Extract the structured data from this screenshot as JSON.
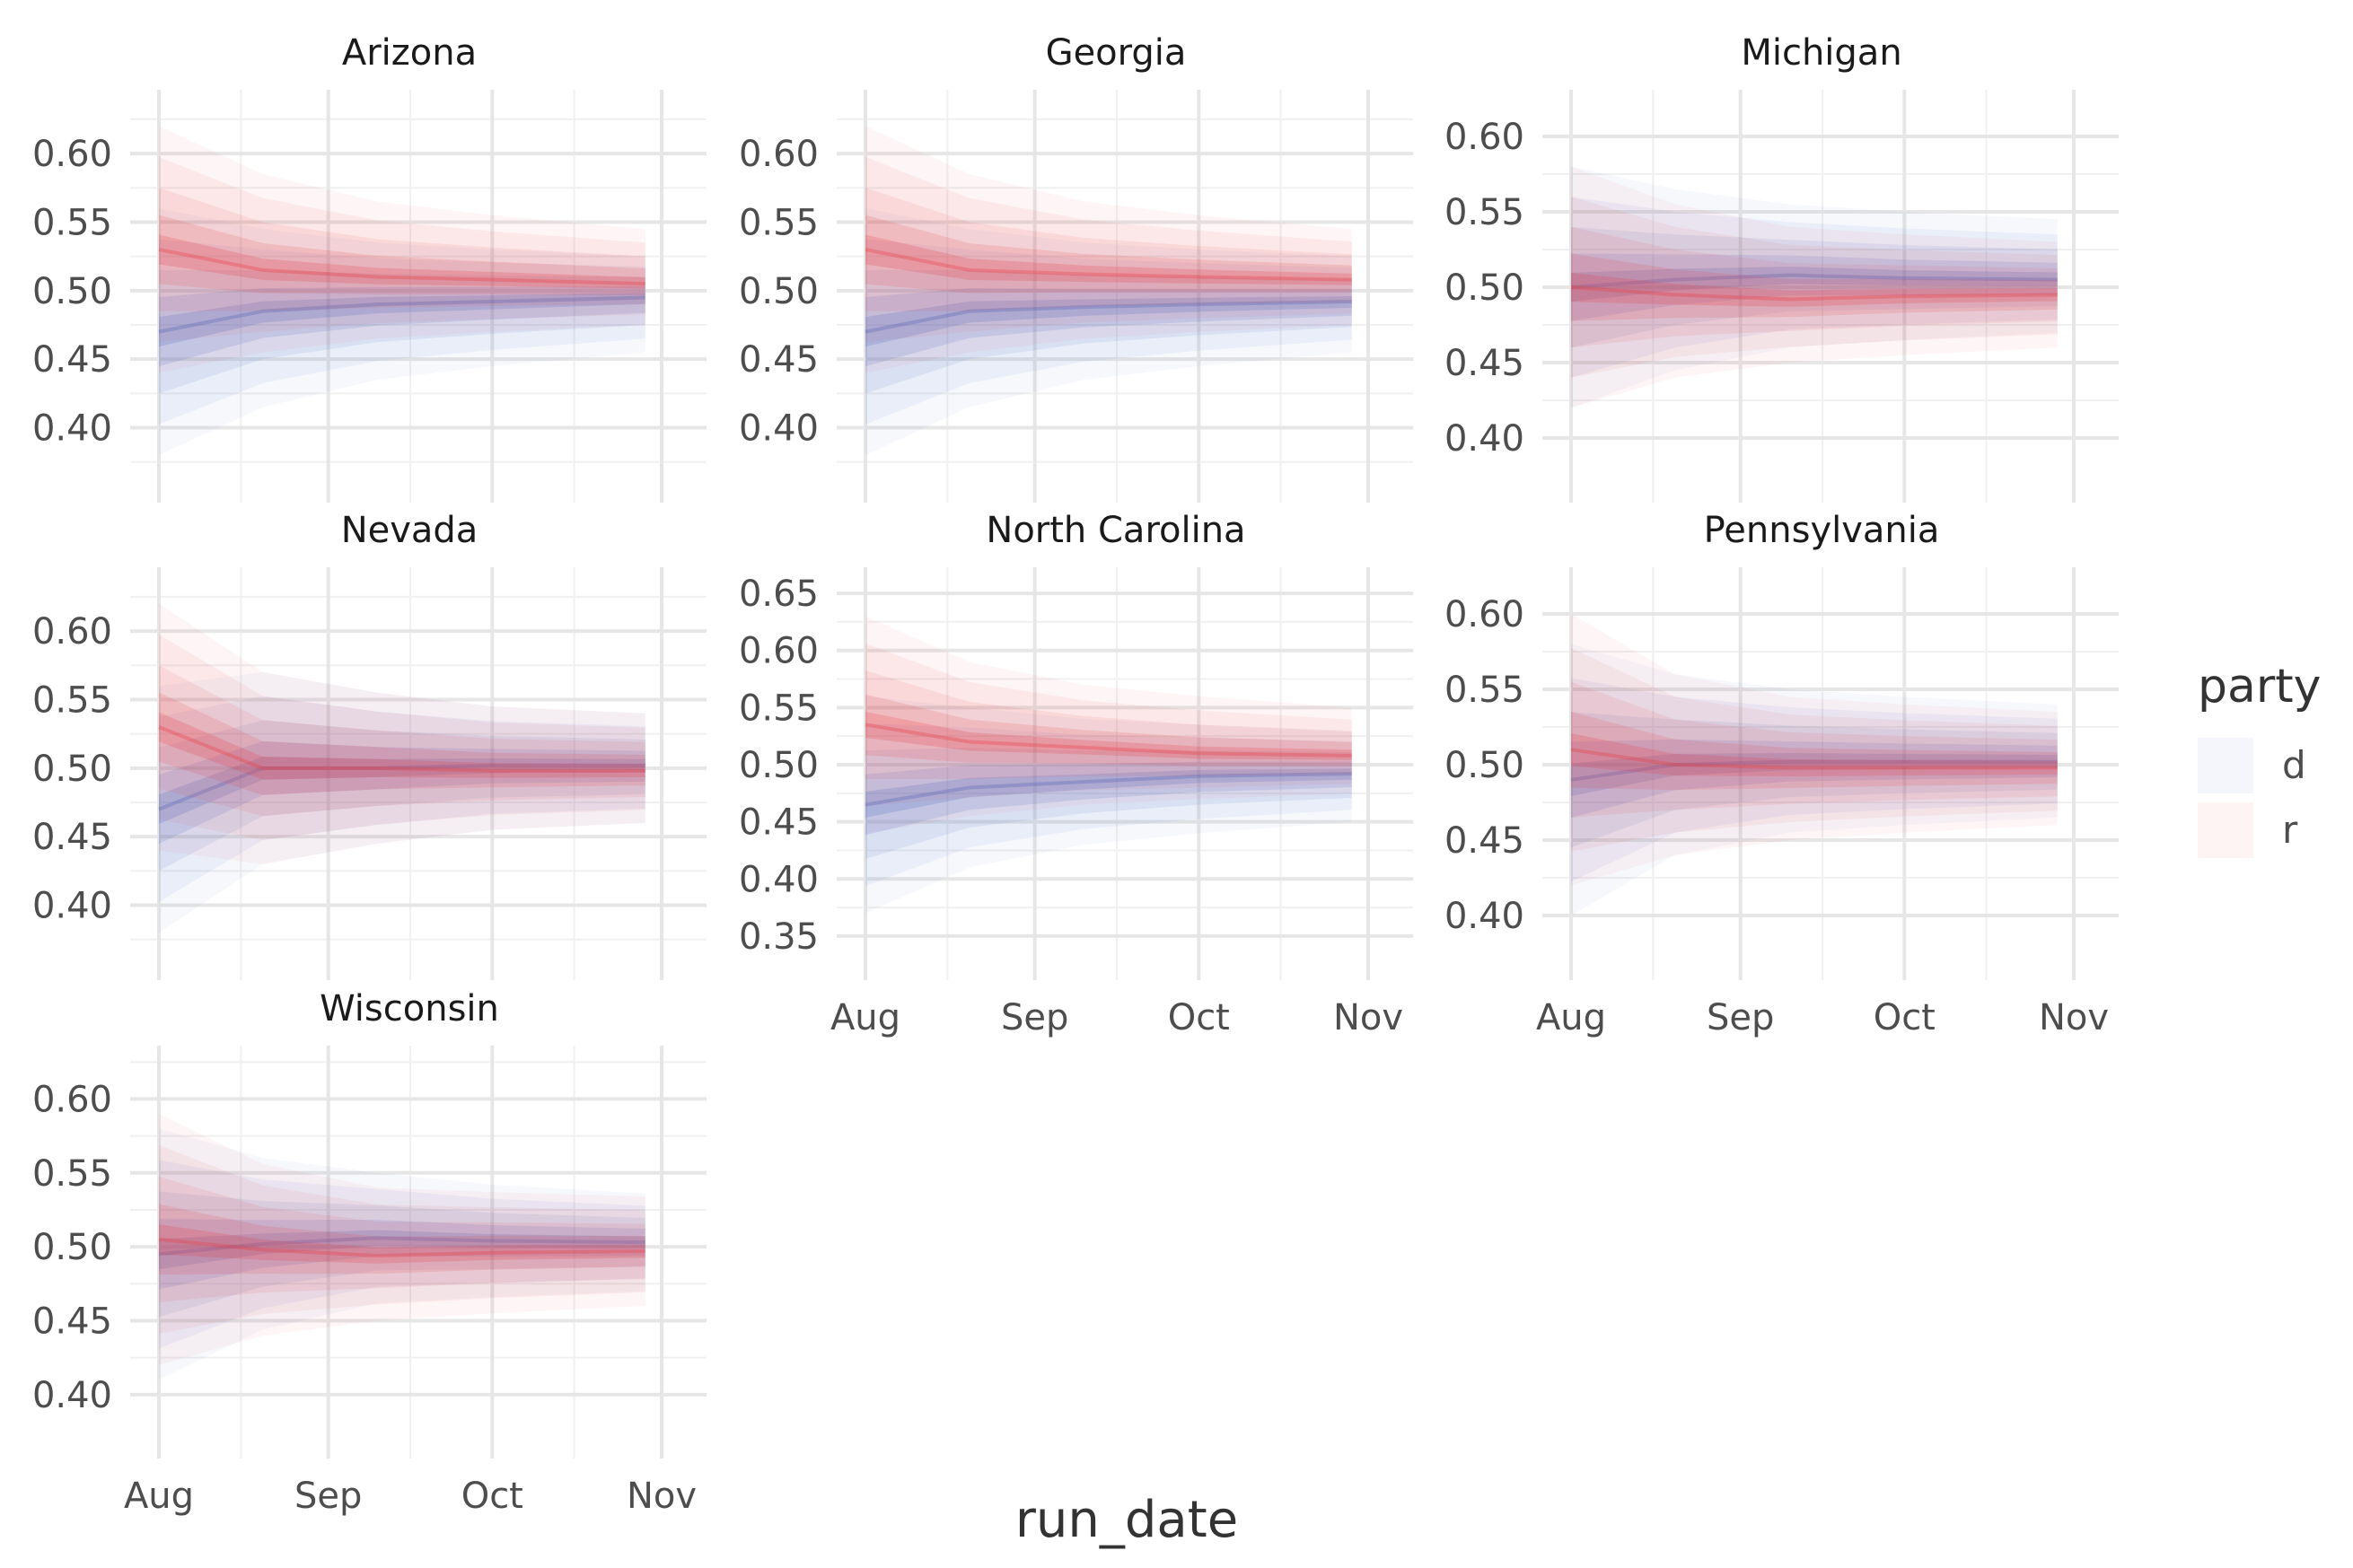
{
  "chart_data": {
    "type": "area",
    "x_axis_label": "run_date",
    "y_axis_label": "",
    "x_ticks": [
      "Aug",
      "Sep",
      "Oct",
      "Nov"
    ],
    "x_range": [
      "2024-08-01",
      "2024-11-01"
    ],
    "series_end": "2024-10-29",
    "legend": {
      "title": "party",
      "placement": "right",
      "entries": [
        {
          "key": "d",
          "label": "d",
          "color": "#4a6cc7"
        },
        {
          "key": "r",
          "label": "r",
          "color": "#e8424a"
        }
      ]
    },
    "grid": true,
    "panels": [
      {
        "title": "Arizona",
        "y_ticks": [
          "0.40",
          "0.45",
          "0.50",
          "0.55",
          "0.60"
        ],
        "ylim": [
          0.365,
          0.64
        ],
        "series": {
          "r": {
            "x": [
              "2024-08-01",
              "2024-08-20",
              "2024-09-10",
              "2024-10-01",
              "2024-10-29"
            ],
            "median": [
              0.53,
              0.515,
              0.51,
              0.508,
              0.505
            ],
            "lower": [
              0.44,
              0.455,
              0.465,
              0.47,
              0.475
            ],
            "upper": [
              0.62,
              0.585,
              0.565,
              0.555,
              0.545
            ]
          },
          "d": {
            "x": [
              "2024-08-01",
              "2024-08-20",
              "2024-09-10",
              "2024-10-01",
              "2024-10-29"
            ],
            "median": [
              0.47,
              0.485,
              0.49,
              0.492,
              0.495
            ],
            "lower": [
              0.38,
              0.415,
              0.435,
              0.445,
              0.455
            ],
            "upper": [
              0.56,
              0.545,
              0.535,
              0.53,
              0.525
            ]
          }
        }
      },
      {
        "title": "Georgia",
        "y_ticks": [
          "0.40",
          "0.45",
          "0.50",
          "0.55",
          "0.60"
        ],
        "ylim": [
          0.365,
          0.64
        ],
        "series": {
          "r": {
            "x": [
              "2024-08-01",
              "2024-08-20",
              "2024-09-10",
              "2024-10-01",
              "2024-10-29"
            ],
            "median": [
              0.53,
              0.515,
              0.512,
              0.51,
              0.508
            ],
            "lower": [
              0.44,
              0.455,
              0.465,
              0.47,
              0.475
            ],
            "upper": [
              0.62,
              0.585,
              0.565,
              0.555,
              0.545
            ]
          },
          "d": {
            "x": [
              "2024-08-01",
              "2024-08-20",
              "2024-09-10",
              "2024-10-01",
              "2024-10-29"
            ],
            "median": [
              0.47,
              0.485,
              0.488,
              0.49,
              0.492
            ],
            "lower": [
              0.38,
              0.415,
              0.435,
              0.445,
              0.455
            ],
            "upper": [
              0.56,
              0.545,
              0.535,
              0.53,
              0.525
            ]
          }
        }
      },
      {
        "title": "Michigan",
        "y_ticks": [
          "0.40",
          "0.45",
          "0.50",
          "0.55",
          "0.60"
        ],
        "ylim": [
          0.375,
          0.625
        ],
        "series": {
          "r": {
            "x": [
              "2024-08-01",
              "2024-08-20",
              "2024-09-10",
              "2024-10-01",
              "2024-10-29"
            ],
            "median": [
              0.5,
              0.495,
              0.492,
              0.494,
              0.495
            ],
            "lower": [
              0.42,
              0.44,
              0.45,
              0.455,
              0.46
            ],
            "upper": [
              0.58,
              0.555,
              0.54,
              0.535,
              0.53
            ]
          },
          "d": {
            "x": [
              "2024-08-01",
              "2024-08-20",
              "2024-09-10",
              "2024-10-01",
              "2024-10-29"
            ],
            "median": [
              0.5,
              0.505,
              0.508,
              0.506,
              0.505
            ],
            "lower": [
              0.42,
              0.445,
              0.46,
              0.465,
              0.47
            ],
            "upper": [
              0.58,
              0.565,
              0.555,
              0.55,
              0.545
            ]
          }
        }
      },
      {
        "title": "Nevada",
        "y_ticks": [
          "0.40",
          "0.45",
          "0.50",
          "0.55",
          "0.60"
        ],
        "ylim": [
          0.365,
          0.64
        ],
        "series": {
          "r": {
            "x": [
              "2024-08-01",
              "2024-08-20",
              "2024-09-10",
              "2024-10-01",
              "2024-10-29"
            ],
            "median": [
              0.53,
              0.5,
              0.5,
              0.498,
              0.498
            ],
            "lower": [
              0.44,
              0.43,
              0.445,
              0.455,
              0.46
            ],
            "upper": [
              0.62,
              0.57,
              0.555,
              0.545,
              0.54
            ]
          },
          "d": {
            "x": [
              "2024-08-01",
              "2024-08-20",
              "2024-09-10",
              "2024-10-01",
              "2024-10-29"
            ],
            "median": [
              0.47,
              0.5,
              0.5,
              0.502,
              0.502
            ],
            "lower": [
              0.38,
              0.43,
              0.445,
              0.455,
              0.46
            ],
            "upper": [
              0.56,
              0.57,
              0.555,
              0.545,
              0.54
            ]
          }
        }
      },
      {
        "title": "North Carolina",
        "y_ticks": [
          "0.35",
          "0.40",
          "0.45",
          "0.50",
          "0.55",
          "0.60",
          "0.65"
        ],
        "ylim": [
          0.335,
          0.665
        ],
        "series": {
          "r": {
            "x": [
              "2024-08-01",
              "2024-08-20",
              "2024-09-10",
              "2024-10-01",
              "2024-10-29"
            ],
            "median": [
              0.535,
              0.52,
              0.515,
              0.51,
              0.508
            ],
            "lower": [
              0.44,
              0.455,
              0.465,
              0.47,
              0.475
            ],
            "upper": [
              0.63,
              0.59,
              0.57,
              0.56,
              0.55
            ]
          },
          "d": {
            "x": [
              "2024-08-01",
              "2024-08-20",
              "2024-09-10",
              "2024-10-01",
              "2024-10-29"
            ],
            "median": [
              0.465,
              0.48,
              0.485,
              0.49,
              0.492
            ],
            "lower": [
              0.37,
              0.41,
              0.43,
              0.44,
              0.45
            ],
            "upper": [
              0.56,
              0.55,
              0.54,
              0.535,
              0.53
            ]
          }
        }
      },
      {
        "title": "Pennsylvania",
        "y_ticks": [
          "0.40",
          "0.45",
          "0.50",
          "0.55",
          "0.60"
        ],
        "ylim": [
          0.375,
          0.625
        ],
        "series": {
          "r": {
            "x": [
              "2024-08-01",
              "2024-08-20",
              "2024-09-10",
              "2024-10-01",
              "2024-10-29"
            ],
            "median": [
              0.51,
              0.5,
              0.498,
              0.498,
              0.498
            ],
            "lower": [
              0.42,
              0.44,
              0.45,
              0.455,
              0.46
            ],
            "upper": [
              0.6,
              0.56,
              0.545,
              0.54,
              0.535
            ]
          },
          "d": {
            "x": [
              "2024-08-01",
              "2024-08-20",
              "2024-09-10",
              "2024-10-01",
              "2024-10-29"
            ],
            "median": [
              0.49,
              0.5,
              0.502,
              0.502,
              0.502
            ],
            "lower": [
              0.4,
              0.44,
              0.455,
              0.46,
              0.465
            ],
            "upper": [
              0.58,
              0.56,
              0.55,
              0.545,
              0.54
            ]
          }
        }
      },
      {
        "title": "Wisconsin",
        "y_ticks": [
          "0.40",
          "0.45",
          "0.50",
          "0.55",
          "0.60"
        ],
        "ylim": [
          0.375,
          0.63
        ],
        "series": {
          "r": {
            "x": [
              "2024-08-01",
              "2024-08-20",
              "2024-09-10",
              "2024-10-01",
              "2024-10-29"
            ],
            "median": [
              0.505,
              0.498,
              0.494,
              0.496,
              0.497
            ],
            "lower": [
              0.42,
              0.44,
              0.45,
              0.455,
              0.46
            ],
            "upper": [
              0.59,
              0.556,
              0.54,
              0.537,
              0.534
            ]
          },
          "d": {
            "x": [
              "2024-08-01",
              "2024-08-20",
              "2024-09-10",
              "2024-10-01",
              "2024-10-29"
            ],
            "median": [
              0.495,
              0.502,
              0.506,
              0.504,
              0.503
            ],
            "lower": [
              0.41,
              0.444,
              0.462,
              0.466,
              0.47
            ],
            "upper": [
              0.58,
              0.56,
              0.55,
              0.542,
              0.536
            ]
          }
        }
      }
    ]
  }
}
